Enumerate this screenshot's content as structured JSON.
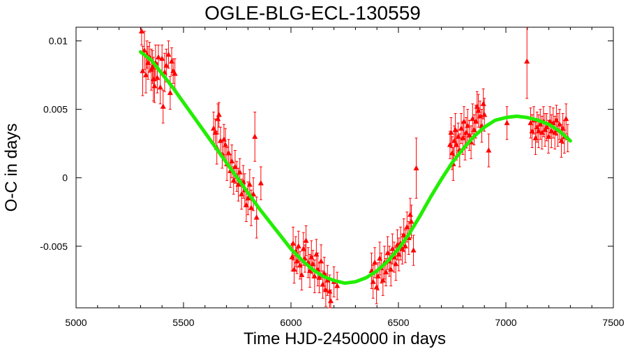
{
  "chart_data": {
    "type": "scatter",
    "title": "OGLE-BLG-ECL-130559",
    "xlabel": "Time HJD-2450000 in days",
    "ylabel": "O-C in days",
    "xlim": [
      5000,
      7500
    ],
    "ylim": [
      -0.0095,
      0.011
    ],
    "x_ticks": [
      5000,
      5500,
      6000,
      6500,
      7000,
      7500
    ],
    "x_tick_labels": [
      "5000",
      "5500",
      "6000",
      "6500",
      "7000",
      "7500"
    ],
    "y_ticks": [
      -0.005,
      0,
      0.005,
      0.01
    ],
    "y_tick_labels": [
      "-0.005",
      "0",
      "0.005",
      "0.01"
    ],
    "grid": false,
    "colors": {
      "points": "#ff0000",
      "fit": "#22ee00",
      "axes": "#000000"
    },
    "series": [
      {
        "kind": "points-with-errorbars",
        "points": [
          [
            5305,
            0.0107,
            0.001
          ],
          [
            5310,
            0.0078,
            0.0018
          ],
          [
            5318,
            0.0093,
            0.0014
          ],
          [
            5325,
            0.0075,
            0.0013
          ],
          [
            5330,
            0.009,
            0.001
          ],
          [
            5335,
            0.0084,
            0.0012
          ],
          [
            5342,
            0.0088,
            0.0011
          ],
          [
            5350,
            0.0079,
            0.0015
          ],
          [
            5356,
            0.0081,
            0.0012
          ],
          [
            5360,
            0.0072,
            0.0016
          ],
          [
            5365,
            0.0067,
            0.0012
          ],
          [
            5370,
            0.0084,
            0.0013
          ],
          [
            5378,
            0.0073,
            0.0011
          ],
          [
            5383,
            0.0088,
            0.0009
          ],
          [
            5392,
            0.0066,
            0.0012
          ],
          [
            5400,
            0.0087,
            0.001
          ],
          [
            5405,
            0.0052,
            0.0012
          ],
          [
            5412,
            0.0077,
            0.0014
          ],
          [
            5420,
            0.0082,
            0.0012
          ],
          [
            5430,
            0.009,
            0.001
          ],
          [
            5438,
            0.0062,
            0.0012
          ],
          [
            5445,
            0.0085,
            0.001
          ],
          [
            5452,
            0.0078,
            0.0009
          ],
          [
            5460,
            0.0076,
            0.0011
          ],
          [
            5640,
            0.0036,
            0.0012
          ],
          [
            5648,
            0.0033,
            0.001
          ],
          [
            5655,
            0.0022,
            0.0012
          ],
          [
            5660,
            0.0043,
            0.0011
          ],
          [
            5665,
            0.0046,
            0.0009
          ],
          [
            5672,
            0.0027,
            0.001
          ],
          [
            5680,
            0.0017,
            0.001
          ],
          [
            5688,
            0.0028,
            0.0011
          ],
          [
            5695,
            0.0024,
            0.0012
          ],
          [
            5702,
            0.001,
            0.0012
          ],
          [
            5710,
            0.0018,
            0.001
          ],
          [
            5718,
            0.0005,
            0.0012
          ],
          [
            5725,
            0.0012,
            0.0012
          ],
          [
            5733,
            -0.0002,
            0.001
          ],
          [
            5740,
            0.0008,
            0.0012
          ],
          [
            5748,
            0.0001,
            0.0011
          ],
          [
            5755,
            -0.0005,
            0.0012
          ],
          [
            5762,
            0.0004,
            0.001
          ],
          [
            5770,
            -0.0012,
            0.0011
          ],
          [
            5778,
            -0.0003,
            0.0012
          ],
          [
            5785,
            -0.0009,
            0.0012
          ],
          [
            5792,
            -0.002,
            0.0012
          ],
          [
            5800,
            -0.0015,
            0.0012
          ],
          [
            5808,
            -0.0005,
            0.0011
          ],
          [
            5815,
            -0.0022,
            0.0013
          ],
          [
            5825,
            -0.0012,
            0.0012
          ],
          [
            5832,
            0.003,
            0.0018
          ],
          [
            5840,
            -0.0029,
            0.0015
          ],
          [
            5860,
            -0.0004,
            0.0012
          ],
          [
            6005,
            -0.0058,
            0.001
          ],
          [
            6010,
            -0.0048,
            0.0012
          ],
          [
            6015,
            -0.0067,
            0.001
          ],
          [
            6022,
            -0.0054,
            0.0011
          ],
          [
            6028,
            -0.0061,
            0.0009
          ],
          [
            6035,
            -0.005,
            0.0011
          ],
          [
            6042,
            -0.0064,
            0.001
          ],
          [
            6050,
            -0.0071,
            0.0011
          ],
          [
            6058,
            -0.0052,
            0.0012
          ],
          [
            6065,
            -0.0059,
            0.001
          ],
          [
            6070,
            -0.0046,
            0.0011
          ],
          [
            6080,
            -0.0062,
            0.0011
          ],
          [
            6088,
            -0.0068,
            0.0012
          ],
          [
            6095,
            -0.0058,
            0.0012
          ],
          [
            6102,
            -0.0063,
            0.001
          ],
          [
            6110,
            -0.0072,
            0.0012
          ],
          [
            6118,
            -0.0056,
            0.0011
          ],
          [
            6125,
            -0.0067,
            0.0012
          ],
          [
            6132,
            -0.0073,
            0.0011
          ],
          [
            6140,
            -0.0061,
            0.0012
          ],
          [
            6148,
            -0.0078,
            0.001
          ],
          [
            6155,
            -0.007,
            0.0012
          ],
          [
            6162,
            -0.0082,
            0.0012
          ],
          [
            6170,
            -0.0075,
            0.0011
          ],
          [
            6180,
            -0.0083,
            0.0012
          ],
          [
            6185,
            -0.009,
            0.0008
          ],
          [
            6200,
            -0.0076,
            0.0011
          ],
          [
            6215,
            -0.0079,
            0.001
          ],
          [
            6375,
            -0.0068,
            0.0013
          ],
          [
            6382,
            -0.0076,
            0.0012
          ],
          [
            6390,
            -0.0062,
            0.0011
          ],
          [
            6398,
            -0.008,
            0.0012
          ],
          [
            6405,
            -0.0072,
            0.001
          ],
          [
            6413,
            -0.0059,
            0.0012
          ],
          [
            6420,
            -0.0066,
            0.0011
          ],
          [
            6428,
            -0.0075,
            0.0011
          ],
          [
            6435,
            -0.0062,
            0.0012
          ],
          [
            6442,
            -0.0069,
            0.001
          ],
          [
            6450,
            -0.0055,
            0.0012
          ],
          [
            6458,
            -0.0061,
            0.0011
          ],
          [
            6465,
            -0.0067,
            0.0012
          ],
          [
            6472,
            -0.0052,
            0.0011
          ],
          [
            6480,
            -0.0058,
            0.0011
          ],
          [
            6488,
            -0.0063,
            0.0012
          ],
          [
            6495,
            -0.0049,
            0.0011
          ],
          [
            6502,
            -0.0056,
            0.0012
          ],
          [
            6510,
            -0.0048,
            0.0012
          ],
          [
            6518,
            -0.0052,
            0.0011
          ],
          [
            6525,
            -0.0042,
            0.0012
          ],
          [
            6532,
            -0.005,
            0.0012
          ],
          [
            6540,
            -0.0036,
            0.0011
          ],
          [
            6548,
            -0.0044,
            0.0012
          ],
          [
            6555,
            -0.0027,
            0.0012
          ],
          [
            6560,
            -0.0032,
            0.0012
          ],
          [
            6570,
            -0.0053,
            0.0011
          ],
          [
            6583,
            0.0007,
            0.0022
          ],
          [
            6740,
            0.0024,
            0.001
          ],
          [
            6745,
            0.0033,
            0.0011
          ],
          [
            6750,
            0.0018,
            0.0012
          ],
          [
            6755,
            0.001,
            0.0012
          ],
          [
            6760,
            0.0027,
            0.0011
          ],
          [
            6765,
            0.0035,
            0.0012
          ],
          [
            6770,
            0.0024,
            0.0011
          ],
          [
            6778,
            0.003,
            0.001
          ],
          [
            6785,
            0.002,
            0.0012
          ],
          [
            6792,
            0.0036,
            0.0011
          ],
          [
            6800,
            0.0029,
            0.0012
          ],
          [
            6805,
            0.0041,
            0.0011
          ],
          [
            6810,
            0.0023,
            0.001
          ],
          [
            6815,
            0.0033,
            0.0011
          ],
          [
            6822,
            0.0038,
            0.0012
          ],
          [
            6830,
            0.0031,
            0.0011
          ],
          [
            6838,
            0.0026,
            0.0012
          ],
          [
            6845,
            0.0043,
            0.0011
          ],
          [
            6852,
            0.0035,
            0.0011
          ],
          [
            6860,
            0.0041,
            0.0012
          ],
          [
            6866,
            0.0052,
            0.0011
          ],
          [
            6872,
            0.0049,
            0.0012
          ],
          [
            6880,
            0.0045,
            0.0011
          ],
          [
            6888,
            0.0038,
            0.0012
          ],
          [
            6895,
            0.0054,
            0.0011
          ],
          [
            6900,
            0.0046,
            0.0012
          ],
          [
            6920,
            0.002,
            0.0012
          ],
          [
            7005,
            0.004,
            0.0012
          ],
          [
            7098,
            0.0085,
            0.0027
          ],
          [
            7115,
            0.004,
            0.0011
          ],
          [
            7122,
            0.0034,
            0.0012
          ],
          [
            7130,
            0.0042,
            0.001
          ],
          [
            7138,
            0.0029,
            0.0012
          ],
          [
            7145,
            0.0037,
            0.0011
          ],
          [
            7152,
            0.0034,
            0.0012
          ],
          [
            7160,
            0.0039,
            0.0011
          ],
          [
            7168,
            0.0033,
            0.0012
          ],
          [
            7175,
            0.0041,
            0.0011
          ],
          [
            7182,
            0.0035,
            0.0012
          ],
          [
            7190,
            0.0037,
            0.001
          ],
          [
            7198,
            0.003,
            0.0012
          ],
          [
            7205,
            0.0041,
            0.0011
          ],
          [
            7212,
            0.0034,
            0.0012
          ],
          [
            7220,
            0.004,
            0.0011
          ],
          [
            7228,
            0.0033,
            0.0012
          ],
          [
            7235,
            0.0042,
            0.0011
          ],
          [
            7242,
            0.0035,
            0.0012
          ],
          [
            7250,
            0.0039,
            0.0011
          ],
          [
            7258,
            0.0027,
            0.0012
          ],
          [
            7265,
            0.0036,
            0.0011
          ],
          [
            7272,
            0.003,
            0.0012
          ],
          [
            7280,
            0.0043,
            0.0011
          ],
          [
            7288,
            0.0029,
            0.001
          ]
        ]
      },
      {
        "kind": "fit-line",
        "points": [
          [
            5300,
            0.0092
          ],
          [
            5350,
            0.0086
          ],
          [
            5400,
            0.0076
          ],
          [
            5450,
            0.0066
          ],
          [
            5500,
            0.0055
          ],
          [
            5550,
            0.0044
          ],
          [
            5600,
            0.0033
          ],
          [
            5650,
            0.0022
          ],
          [
            5700,
            0.0011
          ],
          [
            5750,
            0.0
          ],
          [
            5800,
            -0.0011
          ],
          [
            5850,
            -0.0022
          ],
          [
            5900,
            -0.0032
          ],
          [
            5950,
            -0.0042
          ],
          [
            6000,
            -0.0052
          ],
          [
            6050,
            -0.006
          ],
          [
            6100,
            -0.0067
          ],
          [
            6150,
            -0.0072
          ],
          [
            6200,
            -0.0075
          ],
          [
            6250,
            -0.0077
          ],
          [
            6300,
            -0.0076
          ],
          [
            6350,
            -0.0073
          ],
          [
            6400,
            -0.0068
          ],
          [
            6450,
            -0.0061
          ],
          [
            6500,
            -0.0052
          ],
          [
            6550,
            -0.0041
          ],
          [
            6600,
            -0.0028
          ],
          [
            6650,
            -0.0014
          ],
          [
            6700,
            -0.0001
          ],
          [
            6750,
            0.0011
          ],
          [
            6800,
            0.0021
          ],
          [
            6850,
            0.003
          ],
          [
            6900,
            0.0037
          ],
          [
            6950,
            0.0042
          ],
          [
            7000,
            0.0044
          ],
          [
            7050,
            0.0045
          ],
          [
            7100,
            0.0044
          ],
          [
            7150,
            0.0042
          ],
          [
            7200,
            0.0039
          ],
          [
            7250,
            0.0034
          ],
          [
            7300,
            0.0027
          ]
        ]
      }
    ]
  }
}
